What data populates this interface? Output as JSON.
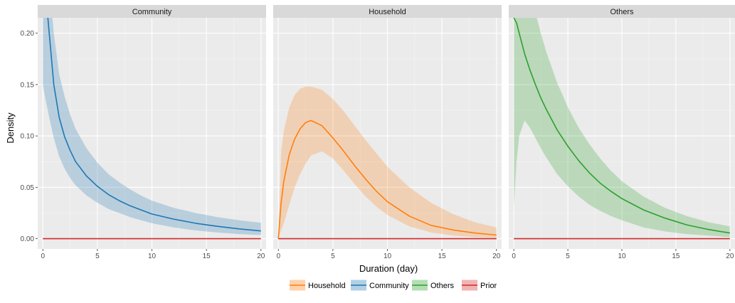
{
  "chart_data": {
    "type": "area",
    "facets": [
      "Community",
      "Household",
      "Others"
    ],
    "xlabel": "Duration (day)",
    "ylabel": "Density",
    "xlim": [
      0,
      20
    ],
    "ylim": [
      -0.01,
      0.215
    ],
    "x_ticks": [
      0,
      5,
      10,
      15,
      20
    ],
    "y_ticks": [
      0.0,
      0.05,
      0.1,
      0.15,
      0.2
    ],
    "y_tick_labels": [
      "0.00",
      "0.05",
      "0.10",
      "0.15",
      "0.20"
    ],
    "legend_position": "bottom",
    "legend": [
      {
        "name": "Household",
        "color": "#ff7f0e"
      },
      {
        "name": "Community",
        "color": "#1f77b4"
      },
      {
        "name": "Others",
        "color": "#2ca02c"
      },
      {
        "name": "Prior",
        "color": "#d62728"
      }
    ],
    "x": [
      0,
      0.25,
      0.5,
      1,
      1.5,
      2,
      2.5,
      3,
      4,
      5,
      6,
      7,
      8,
      9,
      10,
      12,
      14,
      16,
      18,
      20
    ],
    "series": [
      {
        "facet": "Community",
        "name": "Community",
        "color": "#1f77b4",
        "mean": [
          0.26,
          0.24,
          0.21,
          0.15,
          0.118,
          0.099,
          0.086,
          0.075,
          0.061,
          0.051,
          0.043,
          0.037,
          0.032,
          0.028,
          0.024,
          0.019,
          0.015,
          0.012,
          0.0095,
          0.0075
        ],
        "lower": [
          0.15,
          0.135,
          0.122,
          0.098,
          0.08,
          0.068,
          0.059,
          0.052,
          0.042,
          0.035,
          0.029,
          0.025,
          0.021,
          0.018,
          0.015,
          0.011,
          0.008,
          0.006,
          0.0045,
          0.0035
        ],
        "upper": [
          0.26,
          0.26,
          0.26,
          0.2,
          0.16,
          0.138,
          0.121,
          0.107,
          0.088,
          0.074,
          0.063,
          0.055,
          0.048,
          0.042,
          0.037,
          0.03,
          0.025,
          0.021,
          0.018,
          0.0155
        ]
      },
      {
        "facet": "Household",
        "name": "Household",
        "color": "#ff7f0e",
        "mean": [
          0.0,
          0.035,
          0.056,
          0.082,
          0.097,
          0.107,
          0.113,
          0.115,
          0.11,
          0.098,
          0.085,
          0.071,
          0.058,
          0.046,
          0.036,
          0.022,
          0.013,
          0.0085,
          0.0055,
          0.0035
        ],
        "lower": [
          0.0,
          0.008,
          0.015,
          0.033,
          0.05,
          0.063,
          0.073,
          0.081,
          0.085,
          0.078,
          0.066,
          0.053,
          0.041,
          0.031,
          0.023,
          0.012,
          0.006,
          0.003,
          0.0015,
          0.0008
        ],
        "upper": [
          0.0,
          0.085,
          0.105,
          0.128,
          0.14,
          0.146,
          0.148,
          0.148,
          0.145,
          0.136,
          0.124,
          0.11,
          0.096,
          0.083,
          0.07,
          0.05,
          0.035,
          0.024,
          0.016,
          0.011
        ]
      },
      {
        "facet": "Others",
        "name": "Others",
        "color": "#2ca02c",
        "mean": [
          0.215,
          0.21,
          0.2,
          0.18,
          0.164,
          0.15,
          0.137,
          0.126,
          0.106,
          0.09,
          0.076,
          0.064,
          0.054,
          0.046,
          0.039,
          0.028,
          0.02,
          0.0135,
          0.009,
          0.0055
        ],
        "lower": [
          0.03,
          0.075,
          0.1,
          0.115,
          0.108,
          0.098,
          0.088,
          0.079,
          0.063,
          0.051,
          0.041,
          0.033,
          0.027,
          0.022,
          0.018,
          0.011,
          0.007,
          0.0045,
          0.003,
          0.0015
        ],
        "upper": [
          0.26,
          0.26,
          0.26,
          0.26,
          0.245,
          0.22,
          0.2,
          0.182,
          0.152,
          0.128,
          0.108,
          0.092,
          0.078,
          0.066,
          0.056,
          0.041,
          0.03,
          0.022,
          0.016,
          0.012
        ]
      }
    ],
    "prior": {
      "name": "Prior",
      "color": "#d62728",
      "value": 0.0
    }
  }
}
